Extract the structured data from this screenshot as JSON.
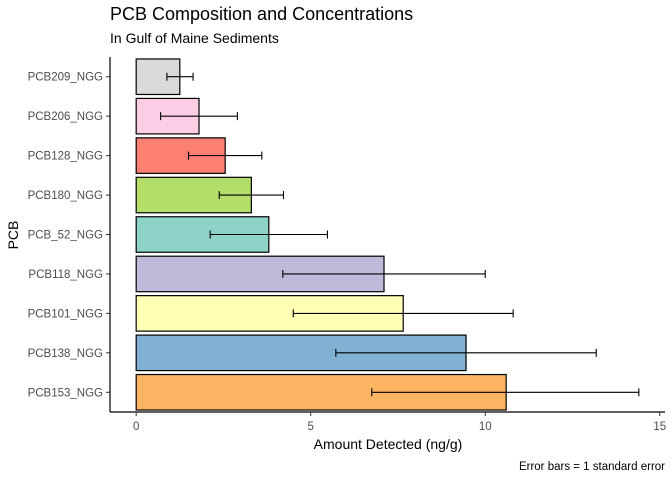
{
  "chart_data": {
    "type": "bar",
    "orientation": "horizontal",
    "title": "PCB Composition and Concentrations",
    "subtitle": "In Gulf of Maine Sediments",
    "xlabel": "Amount Detected (ng/g)",
    "ylabel": "PCB",
    "caption": "Error bars = 1 standard error",
    "xlim": [
      -0.75,
      15.15
    ],
    "xticks": [
      0,
      5,
      10,
      15
    ],
    "grid": false,
    "legend": "none",
    "categories": [
      "PCB209_NGG",
      "PCB206_NGG",
      "PCB128_NGG",
      "PCB180_NGG",
      "PCB_52_NGG",
      "PCB118_NGG",
      "PCB101_NGG",
      "PCB138_NGG",
      "PCB153_NGG"
    ],
    "values": [
      1.25,
      1.8,
      2.55,
      3.3,
      3.8,
      7.1,
      7.65,
      9.45,
      10.6
    ],
    "error_low": [
      0.88,
      0.7,
      1.5,
      2.38,
      2.12,
      4.2,
      4.5,
      5.72,
      6.75
    ],
    "error_high": [
      1.63,
      2.9,
      3.6,
      4.22,
      5.48,
      10.0,
      10.8,
      13.18,
      14.4
    ],
    "colors": [
      "#d9d9d9",
      "#fccde5",
      "#fb8072",
      "#b3de69",
      "#8dd3c7",
      "#bebada",
      "#ffffb3",
      "#80b1d3",
      "#fdb462"
    ]
  }
}
